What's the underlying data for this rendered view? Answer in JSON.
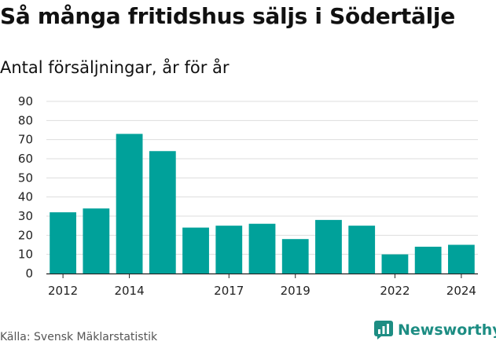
{
  "title": "Så många fritidshus säljs i Södertälje",
  "subtitle": "Antal försäljningar, år för år",
  "source": "Källa: Svensk Mäklarstatistik",
  "brand": {
    "name": "Newsworthy",
    "icon": "newsworthy-logo-icon",
    "color": "#1d8d83"
  },
  "chart_data": {
    "type": "bar",
    "categories": [
      "2012",
      "2013",
      "2014",
      "2015",
      "2016",
      "2017",
      "2018",
      "2019",
      "2020",
      "2021",
      "2022",
      "2023",
      "2024"
    ],
    "values": [
      32,
      34,
      73,
      64,
      24,
      25,
      26,
      18,
      28,
      25,
      10,
      14,
      15
    ],
    "x_tick_labels": [
      "2012",
      "2014",
      "2017",
      "2019",
      "2022",
      "2024"
    ],
    "y_ticks": [
      0,
      10,
      20,
      30,
      40,
      50,
      60,
      70,
      80,
      90
    ],
    "ylim": [
      0,
      90
    ],
    "grid": true,
    "bar_color": "#00a19a",
    "grid_color": "#dddddd"
  }
}
